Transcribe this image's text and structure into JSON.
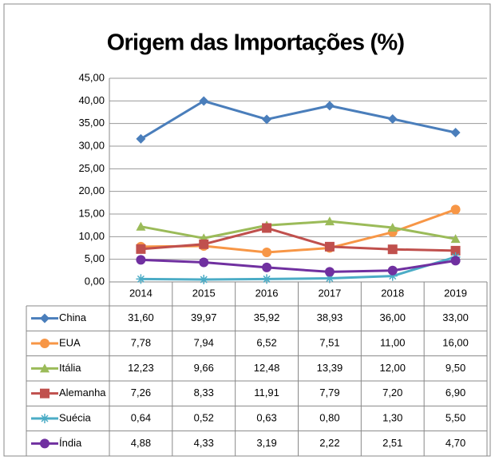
{
  "chart_data": {
    "type": "line",
    "title": "Origem das Importações (%)",
    "categories": [
      "2014",
      "2015",
      "2016",
      "2017",
      "2018",
      "2019"
    ],
    "ylim": [
      0,
      45
    ],
    "yticks": [
      {
        "value": 0,
        "label": "0,00"
      },
      {
        "value": 5,
        "label": "5,00"
      },
      {
        "value": 10,
        "label": "10,00"
      },
      {
        "value": 15,
        "label": "15,00"
      },
      {
        "value": 20,
        "label": "20,00"
      },
      {
        "value": 25,
        "label": "25,00"
      },
      {
        "value": 30,
        "label": "30,00"
      },
      {
        "value": 35,
        "label": "35,00"
      },
      {
        "value": 40,
        "label": "40,00"
      },
      {
        "value": 45,
        "label": "45,00"
      }
    ],
    "grid": true,
    "series": [
      {
        "name": "China",
        "color": "#4a7ebb",
        "marker": "diamond",
        "values": [
          31.6,
          39.97,
          35.92,
          38.93,
          36.0,
          33.0
        ],
        "value_labels": [
          "31,60",
          "39,97",
          "35,92",
          "38,93",
          "36,00",
          "33,00"
        ]
      },
      {
        "name": "EUA",
        "color": "#f79646",
        "marker": "circle",
        "values": [
          7.78,
          7.94,
          6.52,
          7.51,
          11.0,
          16.0
        ],
        "value_labels": [
          "7,78",
          "7,94",
          "6,52",
          "7,51",
          "11,00",
          "16,00"
        ]
      },
      {
        "name": "Itália",
        "color": "#9bbb59",
        "marker": "triangle",
        "values": [
          12.23,
          9.66,
          12.48,
          13.39,
          12.0,
          9.5
        ],
        "value_labels": [
          "12,23",
          "9,66",
          "12,48",
          "13,39",
          "12,00",
          "9,50"
        ]
      },
      {
        "name": "Alemanha",
        "color": "#c0504d",
        "marker": "square",
        "values": [
          7.26,
          8.33,
          11.91,
          7.79,
          7.2,
          6.9
        ],
        "value_labels": [
          "7,26",
          "8,33",
          "11,91",
          "7,79",
          "7,20",
          "6,90"
        ]
      },
      {
        "name": "Suécia",
        "color": "#4bacc6",
        "marker": "star",
        "values": [
          0.64,
          0.52,
          0.63,
          0.8,
          1.3,
          5.5
        ],
        "value_labels": [
          "0,64",
          "0,52",
          "0,63",
          "0,80",
          "1,30",
          "5,50"
        ]
      },
      {
        "name": "Índia",
        "color": "#7030a0",
        "marker": "circle",
        "values": [
          4.88,
          4.33,
          3.19,
          2.22,
          2.51,
          4.7
        ],
        "value_labels": [
          "4,88",
          "4,33",
          "3,19",
          "2,22",
          "2,51",
          "4,70"
        ]
      }
    ]
  }
}
